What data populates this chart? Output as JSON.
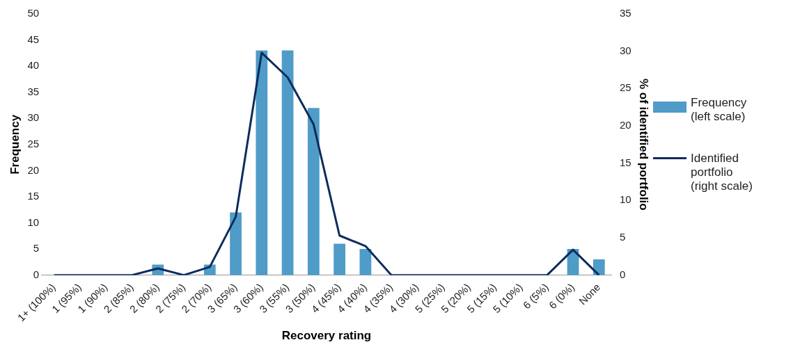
{
  "chart_data": {
    "type": "bar",
    "xlabel": "Recovery rating",
    "ylabel": "Frequency",
    "y2label": "% of identified portfolio",
    "categories": [
      "1+ (100%)",
      "1 (95%)",
      "1 (90%)",
      "2 (85%)",
      "2 (80%)",
      "2 (75%)",
      "2 (70%)",
      "3 (65%)",
      "3 (60%)",
      "3 (55%)",
      "3 (50%)",
      "4 (45%)",
      "4 (40%)",
      "4 (35%)",
      "4 (30%)",
      "5 (25%)",
      "5 (20%)",
      "5 (15%)",
      "5 (10%)",
      "6 (5%)",
      "6 (0%)",
      "None"
    ],
    "series": [
      {
        "name": "Frequency (left scale)",
        "color": "#4f9cc8",
        "values": [
          0,
          0,
          0,
          0,
          2,
          0,
          2,
          12,
          43,
          43,
          32,
          6,
          5,
          0,
          0,
          0,
          0,
          0,
          0,
          0,
          5,
          3
        ]
      },
      {
        "name": "Identified portfolio (right scale)",
        "type": "line",
        "axis": "y2",
        "color": "#0c2c5c",
        "values": [
          0,
          0,
          0,
          0,
          0.9,
          0,
          1.1,
          7.8,
          29.8,
          26.5,
          20.2,
          5.3,
          3.9,
          0,
          0,
          0,
          0,
          0,
          0,
          0,
          3.4,
          0
        ]
      }
    ],
    "ylim": [
      0,
      50
    ],
    "yticks": [
      0,
      5,
      10,
      15,
      20,
      25,
      30,
      35,
      40,
      45,
      50
    ],
    "y2lim": [
      0,
      35
    ],
    "y2ticks": [
      0,
      5,
      10,
      15,
      20,
      25,
      30,
      35
    ],
    "grid": false,
    "legend": "right",
    "marker": "none",
    "line_style": "solid"
  }
}
